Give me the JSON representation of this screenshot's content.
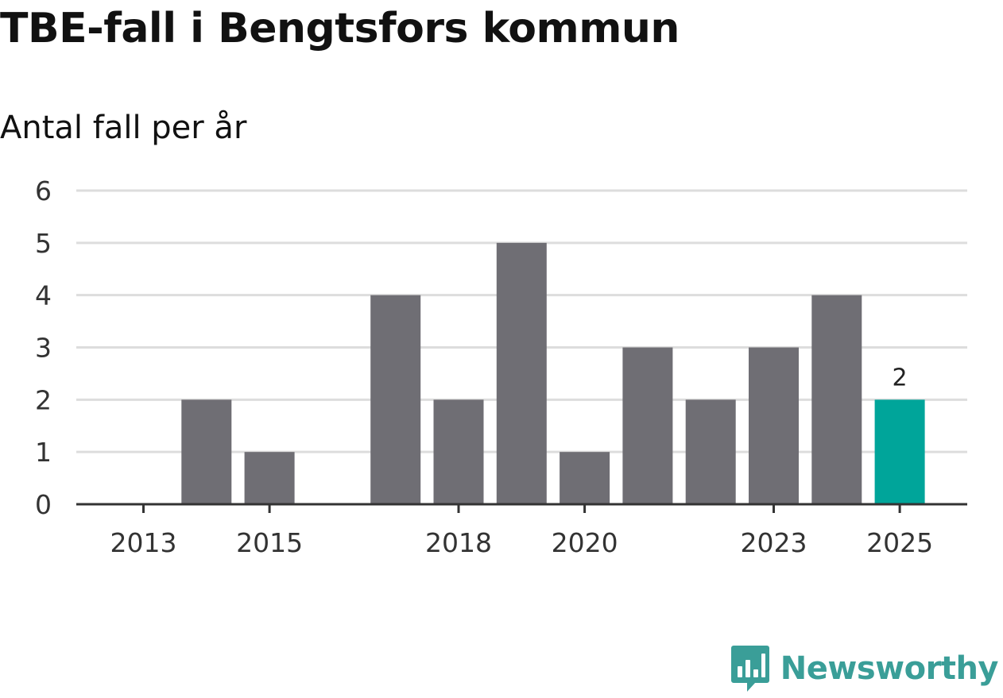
{
  "title": "TBE-fall i Bengtsfors kommun",
  "subtitle": "Antal fall per år",
  "brand": {
    "name": "Newsworthy",
    "color": "#3a9e98"
  },
  "colors": {
    "bar": "#6f6e74",
    "highlight": "#00a59a",
    "grid": "#dddddd",
    "axis": "#333333"
  },
  "chart_data": {
    "type": "bar",
    "title": "TBE-fall i Bengtsfors kommun",
    "subtitle": "Antal fall per år",
    "xlabel": "",
    "ylabel": "",
    "categories": [
      "2013",
      "2014",
      "2015",
      "2016",
      "2017",
      "2018",
      "2019",
      "2020",
      "2021",
      "2022",
      "2023",
      "2024",
      "2025"
    ],
    "values": [
      0,
      2,
      1,
      0,
      4,
      2,
      5,
      1,
      3,
      2,
      3,
      4,
      2
    ],
    "highlight_index": 12,
    "highlight_label": "2",
    "x_tick_labels": [
      "2013",
      "2015",
      "2018",
      "2020",
      "2023",
      "2025"
    ],
    "y_ticks": [
      0,
      1,
      2,
      3,
      4,
      5,
      6
    ],
    "ylim": [
      0,
      6
    ],
    "grid": true
  }
}
